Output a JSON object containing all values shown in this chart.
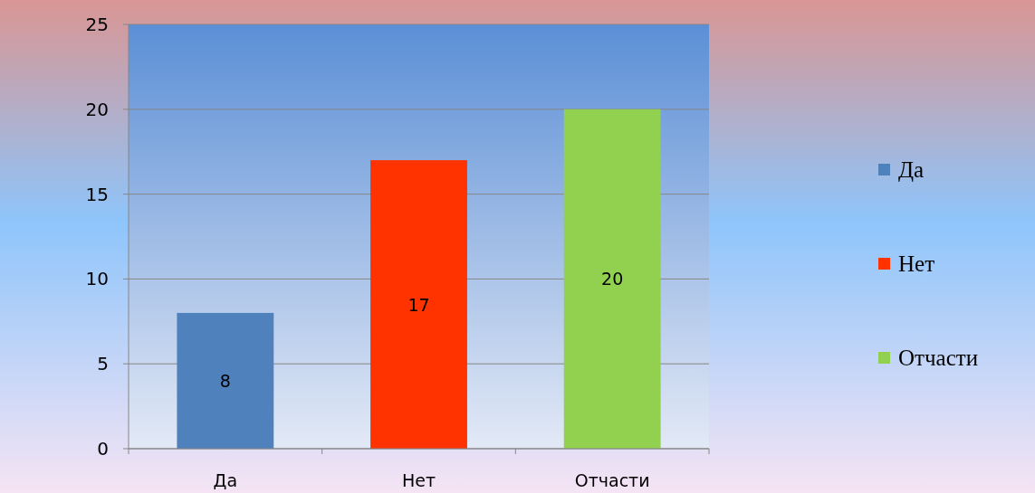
{
  "chart_data": {
    "type": "bar",
    "categories": [
      "Да",
      "Нет",
      "Отчасти"
    ],
    "stacked": true,
    "series": [
      {
        "name": "Да",
        "color": "#4f81bd",
        "values": [
          8,
          null,
          null
        ]
      },
      {
        "name": "Нет",
        "color": "#ff3300",
        "values": [
          null,
          17,
          null
        ]
      },
      {
        "name": "Отчасти",
        "color": "#92d050",
        "values": [
          null,
          null,
          20
        ]
      }
    ],
    "ylim": [
      0,
      25
    ],
    "yticks": [
      0,
      5,
      10,
      15,
      20,
      25
    ],
    "grid": "y",
    "legend": "right",
    "data_labels": true
  }
}
